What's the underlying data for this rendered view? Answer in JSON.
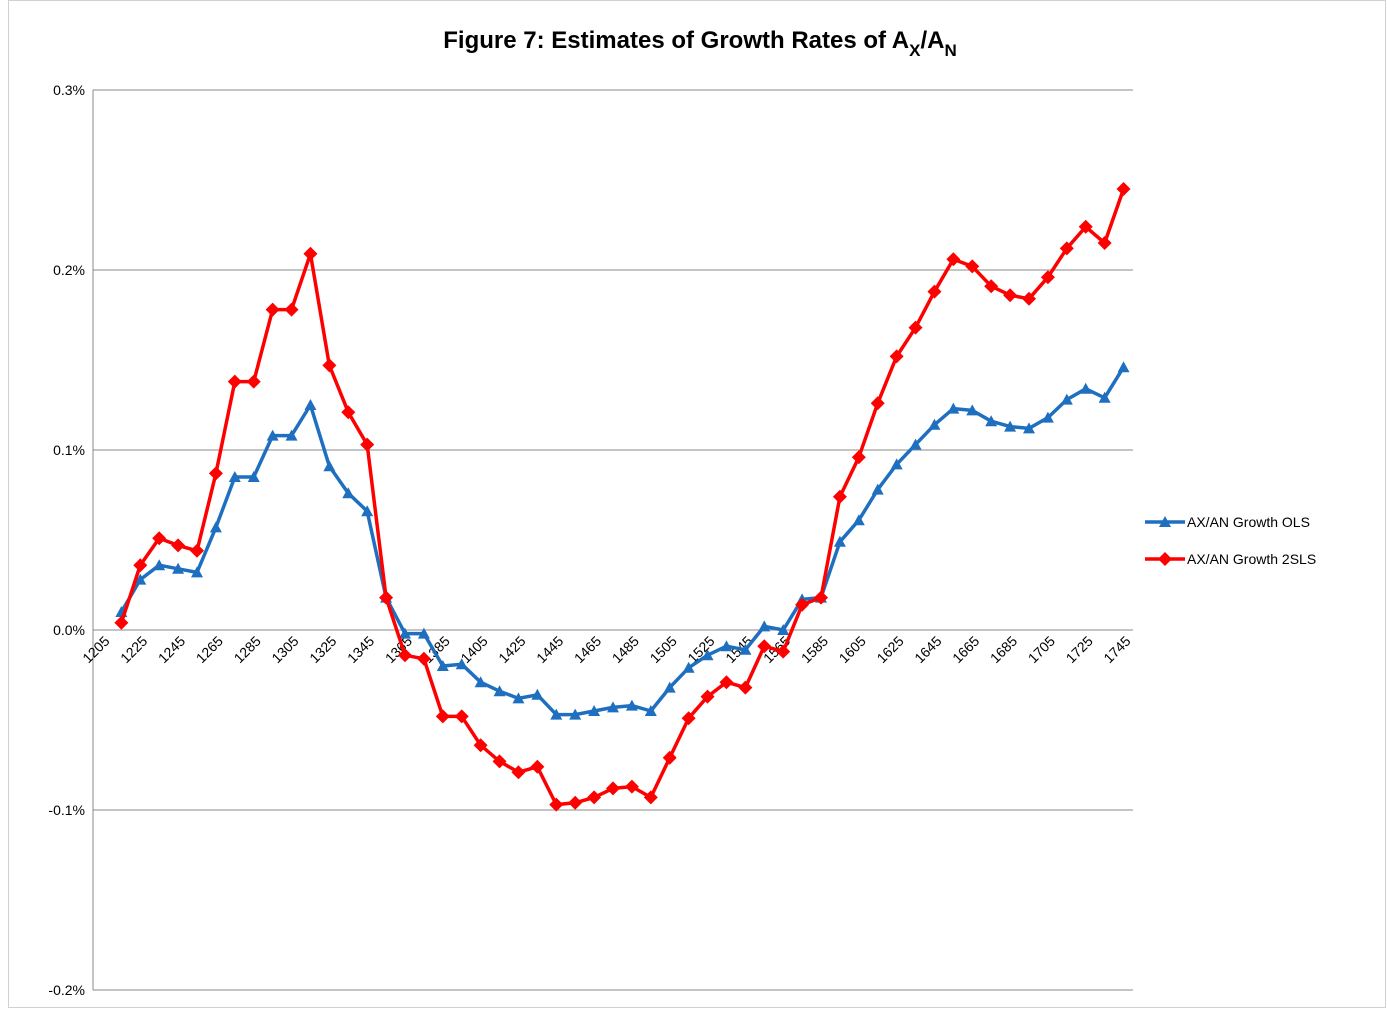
{
  "chart_data": {
    "type": "line",
    "title": [
      "Figure 7: Estimates of Growth Rates of A",
      "X",
      "/A",
      "N"
    ],
    "categories": [
      "1205",
      null,
      "1225",
      null,
      "1245",
      null,
      "1265",
      null,
      "1285",
      null,
      "1305",
      null,
      "1325",
      null,
      "1345",
      null,
      "1365",
      null,
      "1385",
      null,
      "1405",
      null,
      "1425",
      null,
      "1445",
      null,
      "1465",
      null,
      "1485",
      null,
      "1505",
      null,
      "1525",
      null,
      "1545",
      null,
      "1565",
      null,
      "1585",
      null,
      "1605",
      null,
      "1625",
      null,
      "1645",
      null,
      "1665",
      null,
      "1685",
      null,
      "1705",
      null,
      "1725",
      null,
      "1745"
    ],
    "series": [
      {
        "name": "AX/AN Growth OLS",
        "color": "#1f6fc0",
        "marker": "triangle",
        "values": [
          null,
          0.01,
          0.028,
          0.036,
          0.034,
          0.032,
          0.057,
          0.085,
          0.085,
          0.108,
          0.108,
          0.125,
          0.091,
          0.076,
          0.066,
          0.018,
          -0.002,
          -0.002,
          -0.02,
          -0.019,
          -0.029,
          -0.034,
          -0.038,
          -0.036,
          -0.047,
          -0.047,
          -0.045,
          -0.043,
          -0.042,
          -0.045,
          -0.032,
          -0.021,
          -0.014,
          -0.009,
          -0.011,
          0.002,
          0.0,
          0.017,
          0.018,
          0.049,
          0.061,
          0.078,
          0.092,
          0.103,
          0.114,
          0.123,
          0.122,
          0.116,
          0.113,
          0.112,
          0.118,
          0.128,
          0.134,
          0.129,
          0.146
        ]
      },
      {
        "name": "AX/AN Growth 2SLS",
        "color": "#ff0000",
        "marker": "diamond",
        "values": [
          null,
          0.004,
          0.036,
          0.051,
          0.047,
          0.044,
          0.087,
          0.138,
          0.138,
          0.178,
          0.178,
          0.209,
          0.147,
          0.121,
          0.103,
          0.018,
          -0.014,
          -0.016,
          -0.048,
          -0.048,
          -0.064,
          -0.073,
          -0.079,
          -0.076,
          -0.097,
          -0.096,
          -0.093,
          -0.088,
          -0.087,
          -0.093,
          -0.071,
          -0.049,
          -0.037,
          -0.029,
          -0.032,
          -0.009,
          -0.012,
          0.014,
          0.018,
          0.074,
          0.096,
          0.126,
          0.152,
          0.168,
          0.188,
          0.206,
          0.202,
          0.191,
          0.186,
          0.184,
          0.196,
          0.212,
          0.224,
          0.215,
          0.245
        ]
      }
    ],
    "ylim": [
      -0.2,
      0.3
    ],
    "yticks": [
      {
        "value": -0.2,
        "label": "-0.2%"
      },
      {
        "value": -0.1,
        "label": "-0.1%"
      },
      {
        "value": 0,
        "label": "0.0%"
      },
      {
        "value": 0.1,
        "label": "0.1%"
      },
      {
        "value": 0.2,
        "label": "0.2%"
      },
      {
        "value": 0.3,
        "label": "0.3%"
      }
    ],
    "grid": true,
    "legend": "right"
  }
}
